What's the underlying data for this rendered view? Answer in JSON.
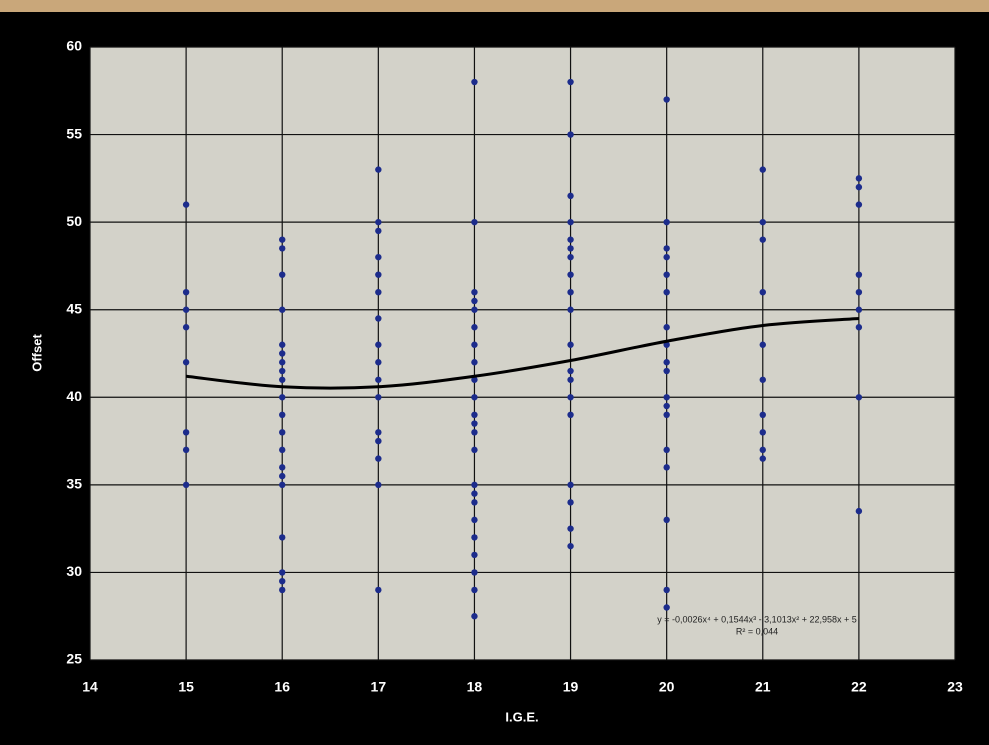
{
  "chart_data": {
    "type": "scatter",
    "x_label": "I.G.E.",
    "y_label": "Offset",
    "xlim": [
      14,
      23
    ],
    "ylim": [
      25,
      60
    ],
    "xticks": [
      14,
      15,
      16,
      17,
      18,
      19,
      20,
      21,
      22,
      23
    ],
    "yticks": [
      25,
      30,
      35,
      40,
      45,
      50,
      55,
      60
    ],
    "grid": true,
    "color": "#1c2c8c",
    "x": [
      15,
      15,
      15,
      15,
      15,
      15,
      15,
      15,
      16,
      16,
      16,
      16,
      16,
      16,
      16,
      16,
      16,
      16,
      16,
      16,
      16,
      16,
      16,
      16,
      16,
      16,
      16,
      16,
      17,
      17,
      17,
      17,
      17,
      17,
      17,
      17,
      17,
      17,
      17,
      17,
      17,
      17,
      17,
      17,
      18,
      18,
      18,
      18,
      18,
      18,
      18,
      18,
      18,
      18,
      18,
      18,
      18,
      18,
      18,
      18,
      18,
      18,
      18,
      18,
      18,
      18,
      18,
      19,
      19,
      19,
      19,
      19,
      19,
      19,
      19,
      19,
      19,
      19,
      19,
      19,
      19,
      19,
      19,
      19,
      19,
      19,
      20,
      20,
      20,
      20,
      20,
      20,
      20,
      20,
      20,
      20,
      20,
      20,
      20,
      20,
      20,
      20,
      20,
      20,
      21,
      21,
      21,
      21,
      21,
      21,
      21,
      21,
      21,
      21,
      22,
      22,
      22,
      22,
      22,
      22,
      22,
      22,
      22
    ],
    "values": [
      51,
      46,
      45,
      44,
      42,
      38,
      37,
      35,
      49,
      48.5,
      47,
      45,
      43,
      42.5,
      42,
      41.5,
      41,
      40,
      39,
      38,
      37,
      36,
      35.5,
      35,
      32,
      30,
      29.5,
      29,
      53,
      50,
      49.5,
      48,
      47,
      46,
      44.5,
      43,
      42,
      41,
      40,
      38,
      37.5,
      36.5,
      35,
      29,
      58,
      50,
      46,
      45.5,
      45,
      44,
      43,
      42,
      41,
      40,
      39,
      38.5,
      38,
      37,
      35,
      34.5,
      34,
      33,
      32,
      31,
      30,
      29,
      27.5,
      58,
      55,
      51.5,
      50,
      49,
      48.5,
      48,
      47,
      46,
      45,
      43,
      41.5,
      41,
      40,
      39,
      35,
      34,
      32.5,
      31.5,
      57,
      50,
      48.5,
      48,
      47,
      46,
      44,
      43,
      42,
      41.5,
      40,
      39.5,
      39,
      37,
      36,
      33,
      29,
      28,
      53,
      50,
      49,
      46,
      43,
      41,
      39,
      38,
      37,
      36.5,
      52.5,
      52,
      51,
      47,
      46,
      45,
      44,
      40,
      33.5
    ],
    "trendline": {
      "color": "#000000",
      "x": [
        15,
        16,
        17,
        18,
        19,
        20,
        21,
        22
      ],
      "values": [
        41.2,
        40.6,
        40.6,
        41.2,
        42.1,
        43.2,
        44.1,
        44.5
      ]
    },
    "annotations": [
      "y = -0,0026x⁴ + 0,1544x³ - 3,1013x² + 22,958x + 5",
      "R² = 0,044"
    ]
  }
}
